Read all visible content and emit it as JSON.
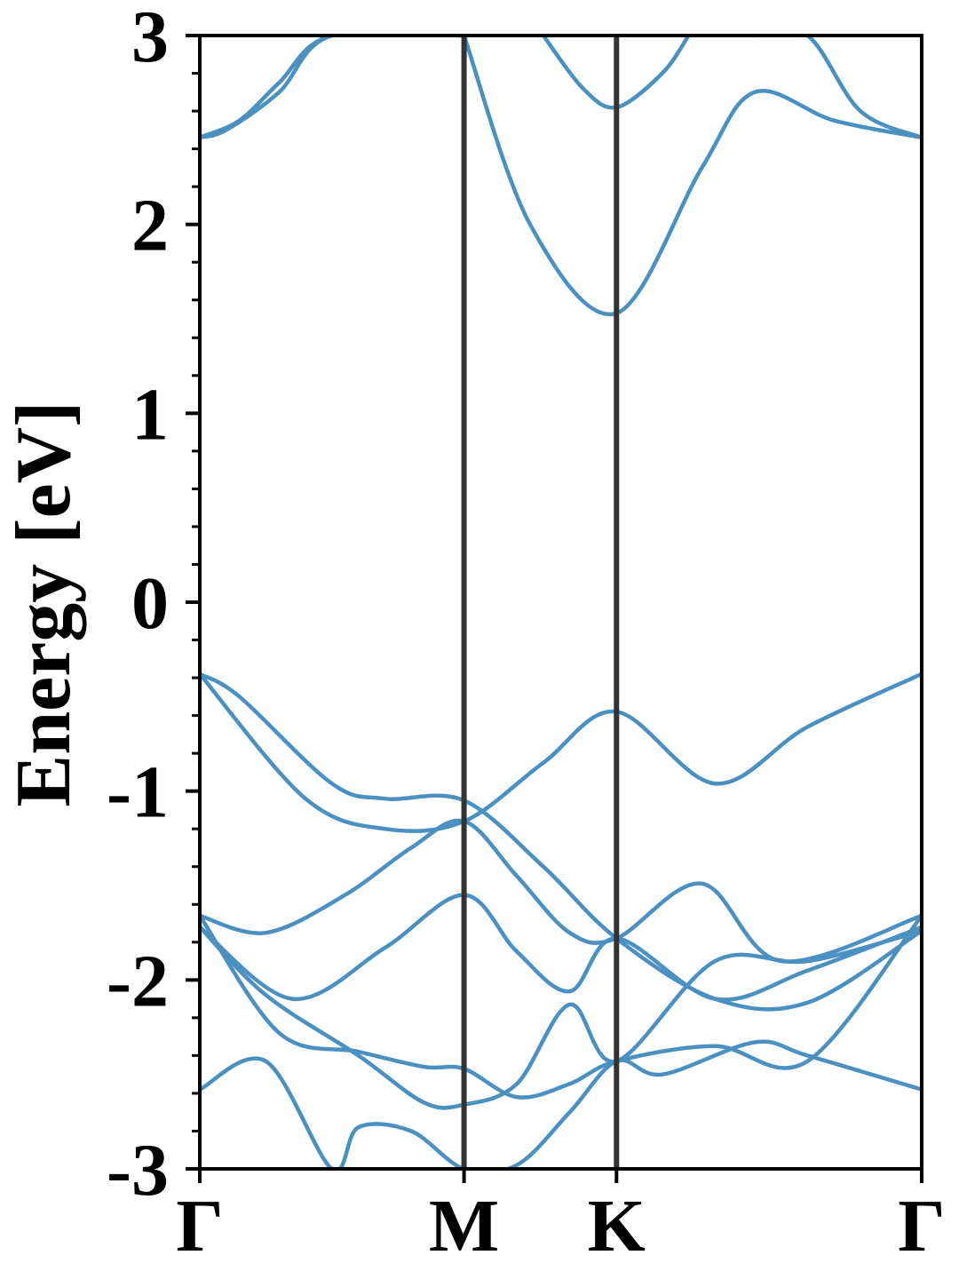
{
  "chart_data": {
    "type": "line",
    "title": "",
    "xlabel": "",
    "ylabel": "Energy [eV]",
    "ylim": [
      -3,
      3
    ],
    "xlim": [
      0,
      2.732
    ],
    "y_ticks": [
      -3,
      -2,
      -1,
      0,
      1,
      2,
      3
    ],
    "y_tick_labels": [
      "-3",
      "-2",
      "-1",
      "0",
      "1",
      "2",
      "3"
    ],
    "y_minor_step": 0.2,
    "high_symmetry_points": [
      {
        "label": "Γ",
        "x": 0
      },
      {
        "label": "M",
        "x": 1.0
      },
      {
        "label": "K",
        "x": 1.577
      },
      {
        "label": "Γ",
        "x": 2.732
      }
    ],
    "grid": false,
    "colors": {
      "bands": "#4a90c0",
      "kpath_lines": "#333333",
      "axes": "#000000"
    },
    "series": [
      {
        "x": [
          0,
          0.15,
          0.5,
          0.7,
          1.0,
          1.3,
          1.577,
          1.95,
          2.3,
          2.732
        ],
        "y": [
          -0.38,
          -0.5,
          -0.96,
          -1.04,
          -1.05,
          -1.4,
          -1.78,
          -2.1,
          -2.12,
          -1.74
        ]
      },
      {
        "x": [
          0,
          0.4,
          0.7,
          1.0,
          1.3,
          1.577,
          1.95,
          2.3,
          2.732
        ],
        "y": [
          -0.38,
          -1.04,
          -1.2,
          -1.16,
          -0.85,
          -0.58,
          -0.96,
          -0.66,
          -0.38
        ]
      },
      {
        "x": [
          0,
          0.25,
          0.55,
          0.8,
          1.0,
          1.2,
          1.4,
          1.577,
          1.9,
          2.2,
          2.732
        ],
        "y": [
          -1.66,
          -1.75,
          -1.55,
          -1.3,
          -1.16,
          -1.45,
          -1.75,
          -1.78,
          -1.49,
          -1.9,
          -1.66
        ]
      },
      {
        "x": [
          0,
          0.35,
          0.7,
          1.0,
          1.2,
          1.4,
          1.577,
          1.95,
          2.3,
          2.732
        ],
        "y": [
          -1.72,
          -2.1,
          -1.83,
          -1.55,
          -1.85,
          -2.06,
          -1.78,
          -2.1,
          -1.95,
          -1.72
        ]
      },
      {
        "x": [
          0,
          0.3,
          0.6,
          0.85,
          1.0,
          1.2,
          1.4,
          1.577,
          1.95,
          2.3,
          2.732
        ],
        "y": [
          -1.66,
          -2.28,
          -2.38,
          -2.46,
          -2.47,
          -2.62,
          -2.55,
          -2.43,
          -2.35,
          -2.43,
          -1.66
        ]
      },
      {
        "x": [
          0,
          0.25,
          0.6,
          0.85,
          1.0,
          1.2,
          1.4,
          1.577,
          1.95,
          2.3,
          2.732
        ],
        "y": [
          -1.72,
          -2.08,
          -2.4,
          -2.65,
          -2.66,
          -2.55,
          -2.13,
          -2.43,
          -1.9,
          -1.9,
          -1.74
        ]
      },
      {
        "x": [
          0,
          0.25,
          0.5,
          0.6,
          0.8,
          1.0,
          1.2,
          1.4,
          1.577,
          1.75,
          2.1,
          2.3,
          2.732
        ],
        "y": [
          -2.58,
          -2.43,
          -3.0,
          -2.78,
          -2.8,
          -3.0,
          -2.98,
          -2.7,
          -2.43,
          -2.5,
          -2.33,
          -2.4,
          -2.58
        ]
      },
      {
        "x": [
          0,
          0.15,
          0.3,
          0.5,
          1.0
        ],
        "y": [
          2.46,
          2.55,
          2.75,
          3.0,
          3.0
        ]
      },
      {
        "x": [
          0,
          0.1,
          0.3,
          0.5,
          1.0
        ],
        "y": [
          2.46,
          2.5,
          2.7,
          3.0,
          3.0
        ]
      },
      {
        "x": [
          1.0,
          1.25,
          1.577,
          1.9,
          2.1,
          2.4,
          2.732
        ],
        "y": [
          3.0,
          2.0,
          1.53,
          2.3,
          2.7,
          2.55,
          2.46
        ]
      },
      {
        "x": [
          1.3,
          1.45,
          1.577,
          1.75,
          1.85
        ],
        "y": [
          3.0,
          2.72,
          2.62,
          2.8,
          3.0
        ]
      },
      {
        "x": [
          2.1,
          2.3,
          2.5,
          2.732
        ],
        "y": [
          3.0,
          3.0,
          2.6,
          2.46
        ]
      }
    ]
  }
}
